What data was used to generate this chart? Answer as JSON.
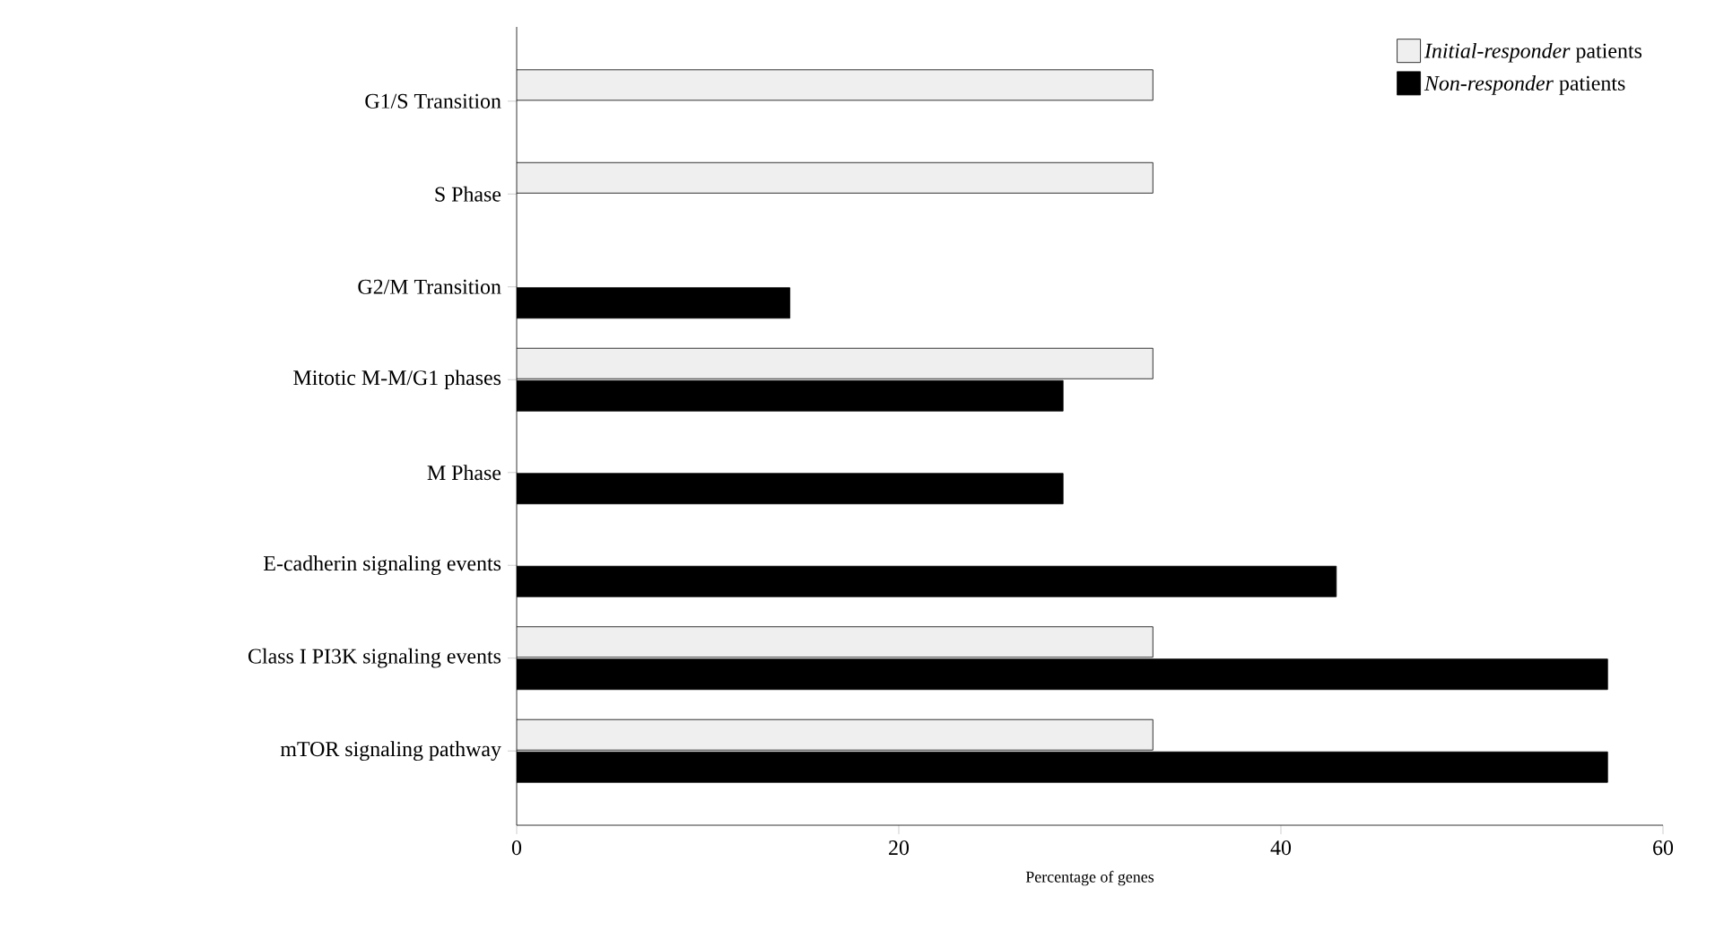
{
  "chart_data": {
    "type": "bar",
    "orientation": "horizontal",
    "xlabel": "Percentage of genes",
    "categories": [
      "G1/S Transition",
      "S Phase",
      "G2/M Transition",
      "Mitotic M-M/G1 phases",
      "M Phase",
      "E-cadherin signaling events",
      "Class I PI3K signaling events",
      "mTOR signaling pathway"
    ],
    "series": [
      {
        "name": "*Initial-responder* patients",
        "color": "#efefef",
        "values": [
          33.3,
          33.3,
          null,
          33.3,
          null,
          null,
          33.3,
          33.3
        ]
      },
      {
        "name": "*Non-responder* patients",
        "color": "#000000",
        "values": [
          null,
          null,
          14.3,
          28.6,
          28.6,
          42.9,
          57.1,
          57.1
        ]
      }
    ],
    "xlim": [
      0,
      60
    ],
    "xticks": [
      0,
      20,
      40,
      60
    ],
    "grid": false,
    "legend": "top right"
  }
}
